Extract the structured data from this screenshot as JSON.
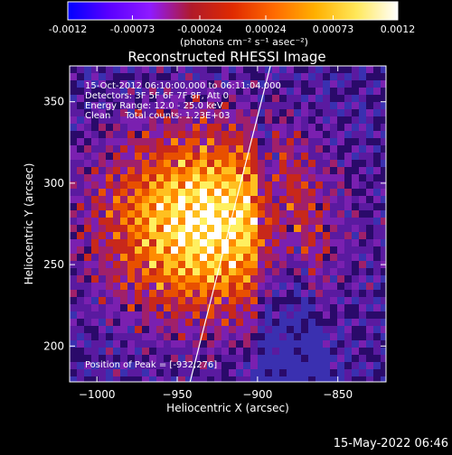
{
  "colorbar": {
    "tick_labels": [
      "-0.0012",
      "-0.00073",
      "-0.00024",
      "0.00024",
      "0.00073",
      "0.0012"
    ],
    "tick_values": [
      -0.0012,
      -0.00073,
      -0.00024,
      0.00024,
      0.00073,
      0.0012
    ],
    "range": [
      -0.0012,
      0.0012
    ],
    "unit_label": "(photons cm⁻² s⁻¹ asec⁻²)",
    "stops": [
      "#0000ff",
      "#5a00ff",
      "#8f1aff",
      "#b01a2a",
      "#e02a00",
      "#ff6a00",
      "#ffb000",
      "#ffe85a",
      "#ffffff"
    ]
  },
  "chart_data": {
    "type": "heatmap",
    "title": "Reconstructed RHESSI Image",
    "xlabel": "Heliocentric X (arcsec)",
    "ylabel": "Heliocentric Y (arcsec)",
    "xlim": [
      -1017,
      -820
    ],
    "ylim": [
      178,
      372
    ],
    "x_ticks": [
      -1000,
      -950,
      -900,
      -850
    ],
    "x_tick_labels": [
      "−1000",
      "−950",
      "−900",
      "−850"
    ],
    "y_ticks": [
      200,
      250,
      300,
      350
    ],
    "y_tick_labels": [
      "200",
      "250",
      "300",
      "350"
    ],
    "limb_line": [
      [
        -942,
        178
      ],
      [
        -892,
        372
      ]
    ],
    "peak": {
      "x": -932,
      "y": 276
    },
    "annotations": [
      "15-Oct-2012 06:10:00.000 to 06:11:04.000",
      "Detectors: 3F 5F 6F 7F 8F, Att 0",
      "Energy Range: 12.0 - 25.0 keV",
      "Clean     Total counts: 1.23E+03"
    ],
    "peak_label": "Position of Peak = [-932,276]"
  },
  "footer": {
    "timestamp": "15-May-2022 06:46"
  }
}
